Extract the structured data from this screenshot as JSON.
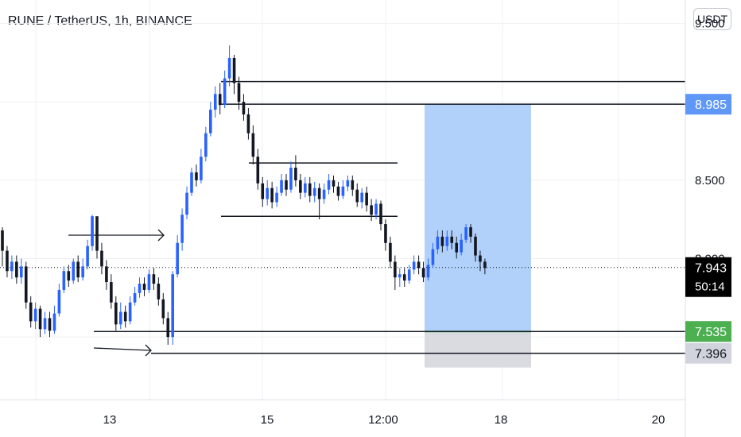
{
  "title": "RUNE / TetherUS, 1h, BINANCE",
  "currency_label": "USDT",
  "colors": {
    "up": "#2962ff",
    "down": "#131722",
    "target_zone": "#a9ccfb",
    "stop_zone": "#d9dbe0",
    "target_badge": "#5e97f6",
    "entry_badge": "#4caf50",
    "stop_badge": "#d1d4dc",
    "current_badge": "#000000",
    "grid": "#eef0f3"
  },
  "chart_data": {
    "type": "candlestick",
    "title": "RUNE / TetherUS, 1h, BINANCE",
    "x_tick_labels": [
      "13",
      "15",
      "12:00",
      "18",
      "20"
    ],
    "y_tick_labels": [
      "9.500",
      "8.500",
      "8.000"
    ],
    "y_range": [
      7.1,
      9.65
    ],
    "price_badges": {
      "target": "8.985",
      "current": "7.943",
      "countdown": "50:14",
      "entry": "7.535",
      "stop": "7.396"
    },
    "grid": true,
    "trade_zone": {
      "entry": 7.535,
      "target": 8.985,
      "stop": 7.396
    },
    "horizontal_levels": [
      9.13,
      8.985,
      8.61,
      8.27,
      7.535,
      7.396
    ],
    "candles": [
      [
        8.18,
        8.05,
        8.2,
        7.95
      ],
      [
        8.05,
        7.92,
        8.08,
        7.88
      ],
      [
        7.92,
        7.98,
        8.02,
        7.87
      ],
      [
        7.98,
        7.88,
        8.02,
        7.84
      ],
      [
        7.88,
        7.95,
        8.0,
        7.84
      ],
      [
        7.95,
        7.72,
        7.98,
        7.68
      ],
      [
        7.72,
        7.6,
        7.76,
        7.56
      ],
      [
        7.6,
        7.68,
        7.72,
        7.55
      ],
      [
        7.68,
        7.55,
        7.7,
        7.5
      ],
      [
        7.55,
        7.62,
        7.66,
        7.52
      ],
      [
        7.62,
        7.54,
        7.66,
        7.5
      ],
      [
        7.54,
        7.65,
        7.7,
        7.52
      ],
      [
        7.65,
        7.8,
        7.84,
        7.63
      ],
      [
        7.8,
        7.92,
        7.95,
        7.78
      ],
      [
        7.92,
        7.86,
        7.96,
        7.82
      ],
      [
        7.86,
        7.98,
        8.0,
        7.84
      ],
      [
        7.98,
        7.88,
        8.02,
        7.85
      ],
      [
        7.88,
        7.95,
        8.0,
        7.86
      ],
      [
        7.95,
        8.08,
        8.12,
        7.93
      ],
      [
        8.08,
        8.27,
        8.28,
        8.05
      ],
      [
        8.27,
        8.05,
        8.27,
        8.0
      ],
      [
        8.05,
        7.95,
        8.1,
        7.9
      ],
      [
        7.95,
        7.85,
        7.99,
        7.8
      ],
      [
        7.85,
        7.72,
        7.9,
        7.68
      ],
      [
        7.72,
        7.58,
        7.76,
        7.54
      ],
      [
        7.58,
        7.66,
        7.72,
        7.55
      ],
      [
        7.66,
        7.6,
        7.7,
        7.56
      ],
      [
        7.6,
        7.72,
        7.76,
        7.58
      ],
      [
        7.72,
        7.78,
        7.82,
        7.7
      ],
      [
        7.78,
        7.84,
        7.88,
        7.75
      ],
      [
        7.84,
        7.8,
        7.88,
        7.76
      ],
      [
        7.8,
        7.9,
        7.93,
        7.78
      ],
      [
        7.9,
        7.84,
        7.94,
        7.8
      ],
      [
        7.84,
        7.74,
        7.88,
        7.7
      ],
      [
        7.74,
        7.62,
        7.78,
        7.58
      ],
      [
        7.62,
        7.5,
        7.66,
        7.45
      ],
      [
        7.5,
        7.9,
        7.92,
        7.45
      ],
      [
        7.9,
        8.1,
        8.15,
        7.88
      ],
      [
        8.1,
        8.28,
        8.32,
        8.05
      ],
      [
        8.28,
        8.42,
        8.46,
        8.25
      ],
      [
        8.42,
        8.55,
        8.58,
        8.4
      ],
      [
        8.55,
        8.5,
        8.6,
        8.46
      ],
      [
        8.5,
        8.65,
        8.7,
        8.48
      ],
      [
        8.65,
        8.8,
        8.84,
        8.62
      ],
      [
        8.8,
        8.95,
        9.0,
        8.78
      ],
      [
        8.95,
        9.05,
        9.1,
        8.9
      ],
      [
        9.05,
        8.98,
        9.12,
        8.92
      ],
      [
        8.98,
        9.15,
        9.2,
        8.96
      ],
      [
        9.15,
        9.28,
        9.36,
        9.1
      ],
      [
        9.28,
        9.12,
        9.3,
        9.05
      ],
      [
        9.12,
        9.0,
        9.16,
        8.95
      ],
      [
        9.0,
        8.92,
        9.05,
        8.88
      ],
      [
        8.92,
        8.8,
        8.96,
        8.76
      ],
      [
        8.8,
        8.65,
        8.85,
        8.6
      ],
      [
        8.65,
        8.48,
        8.7,
        8.44
      ],
      [
        8.48,
        8.38,
        8.52,
        8.33
      ],
      [
        8.38,
        8.45,
        8.5,
        8.34
      ],
      [
        8.45,
        8.36,
        8.49,
        8.32
      ],
      [
        8.36,
        8.42,
        8.46,
        8.33
      ],
      [
        8.42,
        8.5,
        8.54,
        8.4
      ],
      [
        8.5,
        8.44,
        8.54,
        8.4
      ],
      [
        8.44,
        8.58,
        8.62,
        8.42
      ],
      [
        8.58,
        8.5,
        8.66,
        8.46
      ],
      [
        8.5,
        8.42,
        8.54,
        8.38
      ],
      [
        8.42,
        8.48,
        8.52,
        8.39
      ],
      [
        8.48,
        8.4,
        8.52,
        8.36
      ],
      [
        8.4,
        8.45,
        8.49,
        8.36
      ],
      [
        8.45,
        8.38,
        8.48,
        8.25
      ],
      [
        8.38,
        8.44,
        8.48,
        8.35
      ],
      [
        8.44,
        8.5,
        8.54,
        8.41
      ],
      [
        8.5,
        8.46,
        8.53,
        8.42
      ],
      [
        8.46,
        8.4,
        8.49,
        8.37
      ],
      [
        8.4,
        8.46,
        8.5,
        8.38
      ],
      [
        8.46,
        8.5,
        8.53,
        8.43
      ],
      [
        8.5,
        8.44,
        8.53,
        8.4
      ],
      [
        8.44,
        8.36,
        8.48,
        8.33
      ],
      [
        8.36,
        8.42,
        8.45,
        8.32
      ],
      [
        8.42,
        8.34,
        8.46,
        8.3
      ],
      [
        8.34,
        8.28,
        8.38,
        8.24
      ],
      [
        8.28,
        8.35,
        8.38,
        8.25
      ],
      [
        8.35,
        8.22,
        8.37,
        8.18
      ],
      [
        8.22,
        8.1,
        8.25,
        8.05
      ],
      [
        8.1,
        7.98,
        8.14,
        7.94
      ],
      [
        7.98,
        7.88,
        8.02,
        7.8
      ],
      [
        7.88,
        7.9,
        7.94,
        7.82
      ],
      [
        7.9,
        7.86,
        7.94,
        7.82
      ],
      [
        7.86,
        7.93,
        7.96,
        7.84
      ],
      [
        7.93,
        7.98,
        8.02,
        7.9
      ],
      [
        7.98,
        7.94,
        8.02,
        7.9
      ],
      [
        7.94,
        7.88,
        7.98,
        7.85
      ],
      [
        7.88,
        7.96,
        8.0,
        7.86
      ],
      [
        7.96,
        8.06,
        8.1,
        7.94
      ],
      [
        8.06,
        8.14,
        8.18,
        8.03
      ],
      [
        8.14,
        8.08,
        8.18,
        8.04
      ],
      [
        8.08,
        8.14,
        8.18,
        8.05
      ],
      [
        8.14,
        8.1,
        8.18,
        8.06
      ],
      [
        8.1,
        8.04,
        8.14,
        8.0
      ],
      [
        8.04,
        8.12,
        8.16,
        8.02
      ],
      [
        8.12,
        8.2,
        8.22,
        8.1
      ],
      [
        8.2,
        8.14,
        8.22,
        8.1
      ],
      [
        8.14,
        8.02,
        8.16,
        7.98
      ],
      [
        8.02,
        7.98,
        8.05,
        7.92
      ],
      [
        7.98,
        7.94,
        8.0,
        7.9
      ]
    ]
  }
}
